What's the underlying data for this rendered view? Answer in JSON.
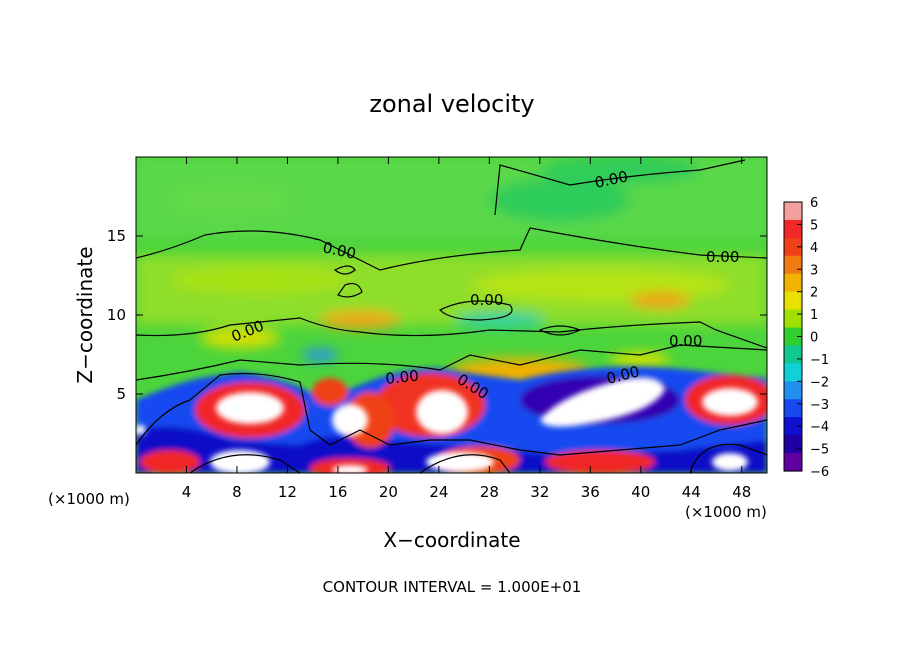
{
  "chart_data": {
    "type": "heatmap",
    "title": "zonal velocity",
    "xlabel": "X−coordinate",
    "ylabel": "Z−coordinate",
    "x_unit_left": "(×1000 m)",
    "x_unit_right": "(×1000 m)",
    "footer": "CONTOUR INTERVAL = 1.000E+01",
    "xlim": [
      0,
      50
    ],
    "ylim": [
      0,
      20
    ],
    "x_ticks": [
      "4",
      "8",
      "12",
      "16",
      "20",
      "24",
      "28",
      "32",
      "36",
      "40",
      "44",
      "48"
    ],
    "y_ticks": [
      "5",
      "10",
      "15"
    ],
    "colorbar": {
      "ticks": [
        "6",
        "5",
        "4",
        "3",
        "2",
        "1",
        "0",
        "−1",
        "−2",
        "−3",
        "−4",
        "−5",
        "−6"
      ],
      "range": [
        -6,
        6
      ],
      "colors": [
        "#f4a0a0",
        "#f02828",
        "#f04018",
        "#f07a10",
        "#f0b400",
        "#e8e000",
        "#a0e000",
        "#30d030",
        "#10c890",
        "#10d0d8",
        "#2090f0",
        "#1848f0",
        "#1010d0",
        "#2000a0",
        "#6000a0"
      ]
    },
    "contour_labels": [
      "0.00",
      "0.00",
      "0.00",
      "0.00",
      "0.00",
      "0.00",
      "0.00",
      "0.00",
      "0.00"
    ]
  }
}
